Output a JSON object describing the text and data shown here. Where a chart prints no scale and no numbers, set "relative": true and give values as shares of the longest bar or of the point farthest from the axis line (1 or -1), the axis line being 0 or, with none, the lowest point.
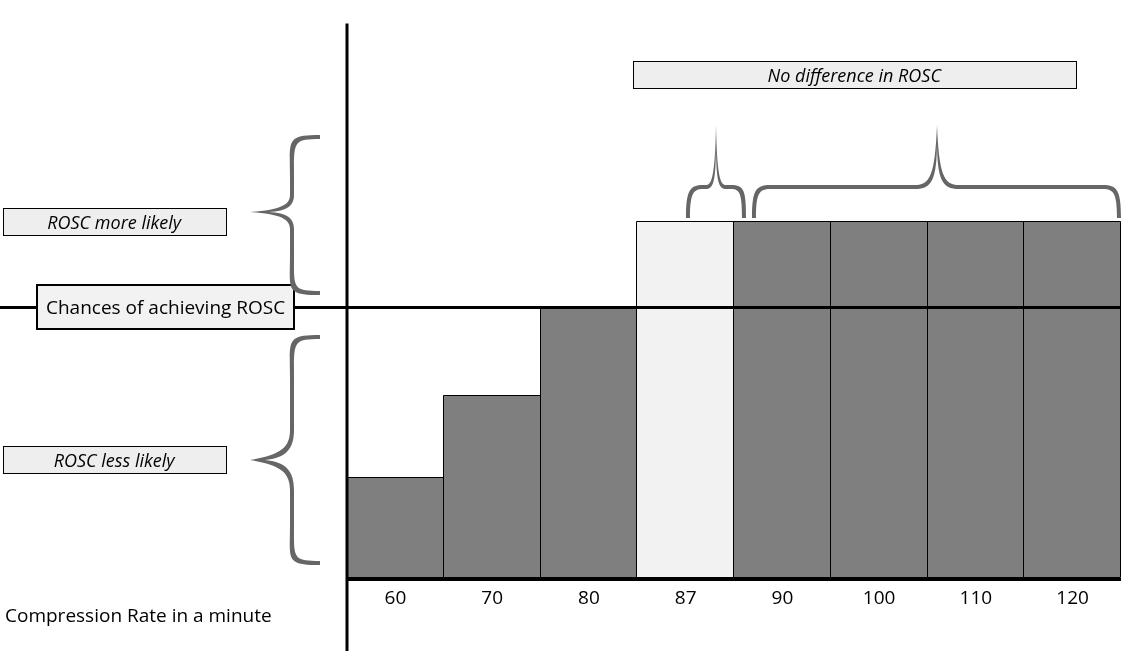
{
  "chart_data": {
    "type": "bar",
    "relative": true,
    "xlabel": "Compression Rate in a minute",
    "categories": [
      "60",
      "70",
      "80",
      "87",
      "90",
      "100",
      "110",
      "120"
    ],
    "values": [
      0.28,
      0.51,
      0.76,
      1,
      1,
      1,
      1,
      1
    ],
    "colors": [
      "#7f7f7f",
      "#7f7f7f",
      "#7f7f7f",
      "#f2f2f2",
      "#7f7f7f",
      "#7f7f7f",
      "#7f7f7f",
      "#7f7f7f"
    ],
    "ref_lines": [
      {
        "axis": "y",
        "value": 0.76,
        "label": "Chances of achieving ROSC",
        "color": "#000000"
      }
    ],
    "annotations": [
      "No difference in ROSC",
      "ROSC more likely",
      "ROSC less likely"
    ]
  }
}
